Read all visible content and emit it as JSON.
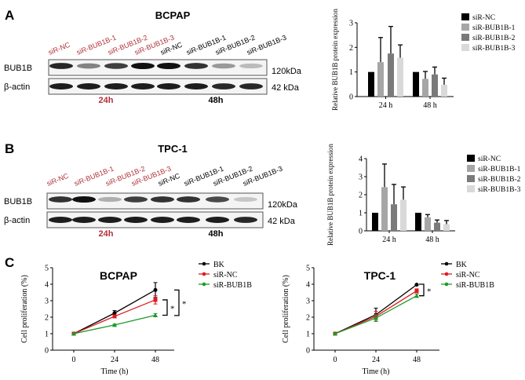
{
  "colors": {
    "red_label": "#b0323a",
    "bk": "#000000",
    "sir_nc": "#e0191f",
    "sir_bub1b": "#1e9a2a",
    "bar_colors": [
      "#000000",
      "#a6a6a6",
      "#7a7a7a",
      "#d9d9d9"
    ]
  },
  "panels": [
    {
      "letter": "A",
      "title": "BCPAP",
      "lanes": [
        "siR-NC",
        "siR-BUB1B-1",
        "siR-BUB1B-2",
        "siR-BUB1B-3",
        "siR-NC",
        "siR-BUB1B-1",
        "siR-BUB1B-2",
        "siR-BUB1B-3"
      ],
      "rows": [
        "BUB1B",
        "β-actin"
      ],
      "kda": [
        "120kDa",
        "42 kDa"
      ],
      "times": [
        "24h",
        "48h"
      ],
      "band_intensity": [
        [
          0.9,
          0.5,
          0.8,
          1,
          1,
          0.85,
          0.4,
          0.25
        ],
        [
          0.95,
          0.95,
          0.95,
          0.95,
          0.95,
          0.95,
          0.9,
          0.9
        ]
      ]
    },
    {
      "letter": "B",
      "title": "TPC-1",
      "lanes": [
        "siR-NC",
        "siR-BUB1B-1",
        "siR-BUB1B-2",
        "siR-BUB1B-3",
        "siR-NC",
        "siR-BUB1B-1",
        "siR-BUB1B-2",
        "siR-BUB1B-3"
      ],
      "rows": [
        "BUB1B",
        "β-actin"
      ],
      "kda": [
        "120kDa",
        "42 kDa"
      ],
      "times": [
        "24h",
        "48h"
      ],
      "band_intensity": [
        [
          0.85,
          1,
          0.3,
          0.8,
          0.85,
          0.85,
          0.75,
          0.2
        ],
        [
          0.95,
          0.95,
          0.95,
          0.95,
          0.95,
          0.95,
          0.95,
          0.9
        ]
      ]
    },
    {
      "letter": "C"
    }
  ],
  "chart_data": [
    {
      "type": "bar",
      "ylabel": "Relative BUB1B protein expression",
      "categories": [
        "24 h",
        "48 h"
      ],
      "ylim": [
        0,
        3
      ],
      "yticks": [
        "0",
        "1",
        "2",
        "3"
      ],
      "legend": "right",
      "series": [
        {
          "name": "siR-NC",
          "values": [
            1,
            1
          ],
          "err_top": [
            1,
            1
          ]
        },
        {
          "name": "siR-BUB1B-1",
          "values": [
            1.4,
            0.72
          ],
          "err_top": [
            2.4,
            1.02
          ]
        },
        {
          "name": "siR-BUB1B-2",
          "values": [
            1.75,
            0.9
          ],
          "err_top": [
            2.85,
            1.2
          ]
        },
        {
          "name": "siR-BUB1B-3",
          "values": [
            1.58,
            0.48
          ],
          "err_top": [
            2.1,
            0.75
          ]
        }
      ]
    },
    {
      "type": "bar",
      "ylabel": "Relative BUB1B protein expression",
      "categories": [
        "24 h",
        "48 h"
      ],
      "ylim": [
        0,
        4
      ],
      "yticks": [
        "0",
        "1",
        "2",
        "3",
        "4"
      ],
      "legend": "right",
      "series": [
        {
          "name": "siR-NC",
          "values": [
            1,
            1
          ],
          "err_top": [
            1,
            1
          ]
        },
        {
          "name": "siR-BUB1B-1",
          "values": [
            2.42,
            0.75
          ],
          "err_top": [
            3.7,
            0.9
          ]
        },
        {
          "name": "siR-BUB1B-2",
          "values": [
            1.47,
            0.45
          ],
          "err_top": [
            2.57,
            0.6
          ]
        },
        {
          "name": "siR-BUB1B-3",
          "values": [
            1.72,
            0.37
          ],
          "err_top": [
            2.43,
            0.57
          ]
        }
      ]
    },
    {
      "type": "line",
      "title": "BCPAP",
      "xlabel": "Time (h)",
      "ylabel": "Cell proliferation (%)",
      "x": [
        0,
        24,
        48
      ],
      "xticks": [
        "0",
        "24",
        "48"
      ],
      "ylim": [
        0,
        5
      ],
      "yticks": [
        "0",
        "1",
        "2",
        "3",
        "4",
        "5"
      ],
      "legend": "right",
      "significance": "*",
      "series": [
        {
          "name": "BK",
          "values": [
            1,
            2.25,
            3.65
          ],
          "err": [
            0,
            0.15,
            0.45
          ]
        },
        {
          "name": "siR-NC",
          "values": [
            1,
            2.05,
            3.05
          ],
          "err": [
            0,
            0.08,
            0.25
          ]
        },
        {
          "name": "siR-BUB1B",
          "values": [
            1,
            1.53,
            2.12
          ],
          "err": [
            0,
            0.05,
            0.1
          ]
        }
      ],
      "brackets": [
        {
          "from": 3.05,
          "to": 2.12,
          "label": "*"
        },
        {
          "from": 3.65,
          "to": 2.1,
          "label": "*"
        }
      ]
    },
    {
      "type": "line",
      "title": "TPC-1",
      "xlabel": "Time (h)",
      "ylabel": "Cell proliferation (%)",
      "x": [
        0,
        24,
        48
      ],
      "xticks": [
        "0",
        "24",
        "48"
      ],
      "ylim": [
        0,
        5
      ],
      "yticks": [
        "0",
        "1",
        "2",
        "3",
        "4",
        "5"
      ],
      "legend": "right",
      "significance": "*",
      "series": [
        {
          "name": "BK",
          "values": [
            1,
            2.15,
            3.97
          ],
          "err": [
            0,
            0.4,
            0.03
          ]
        },
        {
          "name": "siR-NC",
          "values": [
            1,
            2.05,
            3.6
          ],
          "err": [
            0,
            0.3,
            0.12
          ]
        },
        {
          "name": "siR-BUB1B",
          "values": [
            1,
            1.95,
            3.3
          ],
          "err": [
            0,
            0.2,
            0.1
          ]
        }
      ],
      "brackets": [
        {
          "from": 4.0,
          "to": 3.3,
          "label": "*"
        }
      ]
    }
  ]
}
